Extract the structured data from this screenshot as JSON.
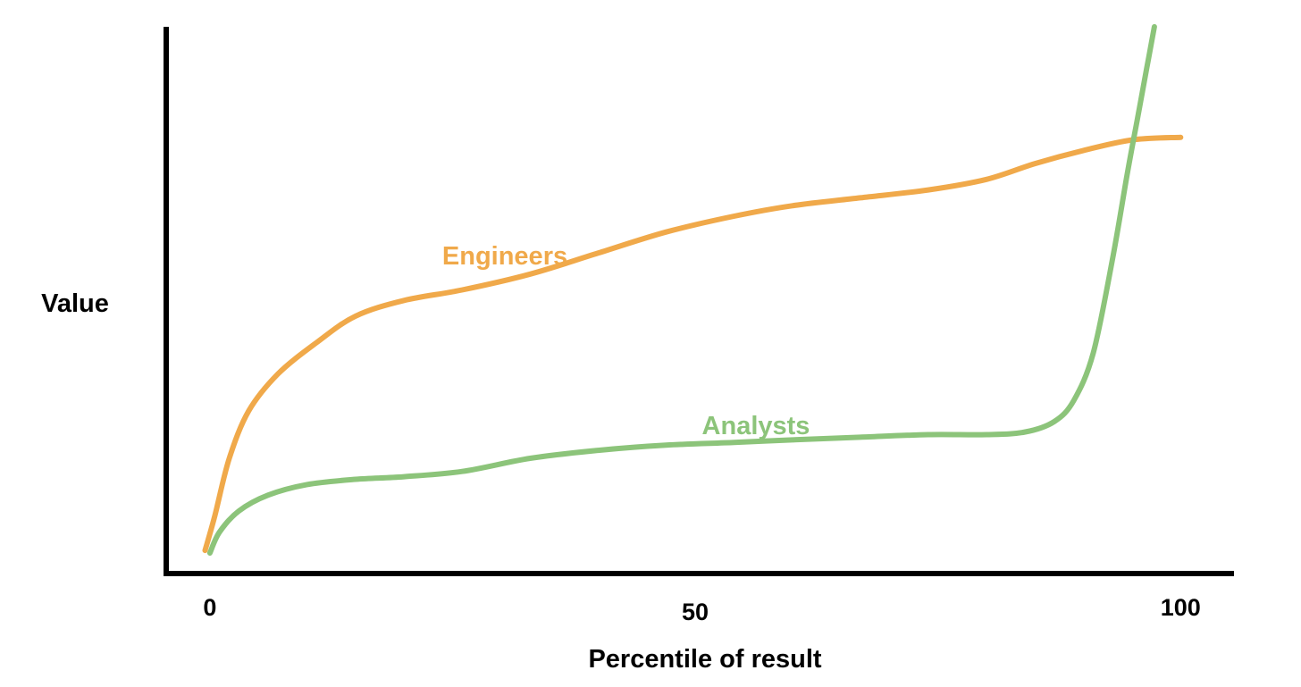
{
  "chart_data": {
    "type": "line",
    "xlabel": "Percentile of result",
    "ylabel": "Value",
    "xticks": [
      {
        "value": 0,
        "label": "0"
      },
      {
        "value": 50,
        "label": "50"
      },
      {
        "value": 100,
        "label": "100"
      }
    ],
    "xlim": [
      -4.5,
      105.5
    ],
    "ylim": [
      0,
      100
    ],
    "y_ticks_shown": false,
    "grid": false,
    "legend": "inline labels on lines",
    "series": [
      {
        "name": "Engineers",
        "color": "#F0A94A",
        "points": [
          [
            -0.5,
            0.5
          ],
          [
            0.5,
            7
          ],
          [
            2,
            18
          ],
          [
            4,
            27
          ],
          [
            7,
            34
          ],
          [
            11,
            40
          ],
          [
            15,
            45
          ],
          [
            20,
            48
          ],
          [
            26,
            50
          ],
          [
            33,
            53
          ],
          [
            40,
            57
          ],
          [
            47,
            61
          ],
          [
            54,
            64
          ],
          [
            60,
            66
          ],
          [
            67,
            67.5
          ],
          [
            74,
            69
          ],
          [
            80,
            71
          ],
          [
            85,
            74
          ],
          [
            90,
            76.5
          ],
          [
            95,
            78.5
          ],
          [
            100,
            79
          ]
        ]
      },
      {
        "name": "Analysts",
        "color": "#8CC47A",
        "points": [
          [
            0,
            0
          ],
          [
            1,
            4
          ],
          [
            3,
            8
          ],
          [
            6,
            11
          ],
          [
            10,
            13
          ],
          [
            15,
            14
          ],
          [
            20,
            14.5
          ],
          [
            26,
            15.5
          ],
          [
            33,
            18
          ],
          [
            40,
            19.5
          ],
          [
            47,
            20.5
          ],
          [
            54,
            21
          ],
          [
            60,
            21.5
          ],
          [
            67,
            22
          ],
          [
            74,
            22.5
          ],
          [
            80,
            22.5
          ],
          [
            84,
            23
          ],
          [
            87,
            25
          ],
          [
            89,
            29
          ],
          [
            91,
            38
          ],
          [
            93,
            56
          ],
          [
            94.5,
            72
          ],
          [
            95.5,
            82
          ],
          [
            96.5,
            92
          ],
          [
            97.3,
            100
          ]
        ]
      }
    ]
  }
}
